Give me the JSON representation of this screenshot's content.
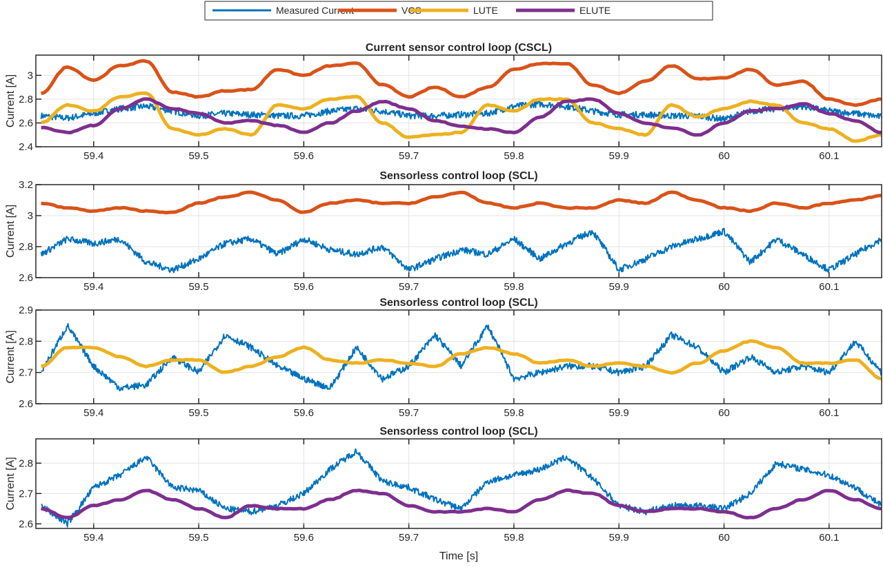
{
  "chart_data": {
    "type": "line",
    "legend": {
      "placement": "top-center",
      "entries": [
        {
          "name": "Measured Current",
          "color": "#0072BD"
        },
        {
          "name": "VCS",
          "color": "#D95319"
        },
        {
          "name": "LUTE",
          "color": "#EDB120"
        },
        {
          "name": "ELUTE",
          "color": "#7E2F8E"
        }
      ]
    },
    "xlabel": "Time [s]",
    "x": [
      59.35,
      59.375,
      59.4,
      59.425,
      59.45,
      59.475,
      59.5,
      59.525,
      59.55,
      59.575,
      59.6,
      59.625,
      59.65,
      59.675,
      59.7,
      59.725,
      59.75,
      59.775,
      59.8,
      59.825,
      59.85,
      59.875,
      59.9,
      59.925,
      59.95,
      59.975,
      60,
      60.025,
      60.05,
      60.075,
      60.1,
      60.125,
      60.15
    ],
    "xlim": [
      59.345,
      60.15
    ],
    "xticks": [
      59.4,
      59.5,
      59.6,
      59.7,
      59.8,
      59.9,
      60,
      60.1
    ],
    "xtick_labels": [
      "59.4",
      "59.5",
      "59.6",
      "59.7",
      "59.8",
      "59.9",
      "60",
      "60.1"
    ],
    "grid": true,
    "subplots": [
      {
        "title": "Current sensor control loop (CSCL)",
        "ylabel": "Current [A]",
        "ylim": [
          2.4,
          3.17
        ],
        "yticks": [
          2.4,
          2.6,
          2.8,
          3
        ],
        "ytick_labels": [
          "2.4",
          "2.6",
          "2.8",
          "3"
        ],
        "series": [
          {
            "name": "Measured Current",
            "color": "#0072BD",
            "values": [
              2.66,
              2.64,
              2.68,
              2.72,
              2.74,
              2.7,
              2.66,
              2.68,
              2.67,
              2.66,
              2.66,
              2.7,
              2.72,
              2.7,
              2.66,
              2.66,
              2.67,
              2.68,
              2.74,
              2.76,
              2.74,
              2.7,
              2.67,
              2.67,
              2.66,
              2.66,
              2.63,
              2.7,
              2.72,
              2.74,
              2.7,
              2.68,
              2.65
            ]
          },
          {
            "name": "VCS",
            "color": "#D95319",
            "values": [
              2.85,
              3.07,
              2.96,
              3.08,
              3.12,
              2.86,
              2.82,
              2.87,
              2.88,
              3.05,
              3.0,
              3.08,
              3.1,
              2.92,
              2.82,
              2.9,
              2.82,
              2.9,
              3.05,
              3.1,
              3.1,
              2.92,
              2.85,
              2.95,
              3.08,
              2.97,
              2.98,
              3.05,
              2.92,
              2.95,
              2.8,
              2.75,
              2.8
            ]
          },
          {
            "name": "LUTE",
            "color": "#EDB120",
            "values": [
              2.6,
              2.75,
              2.7,
              2.82,
              2.85,
              2.55,
              2.5,
              2.55,
              2.5,
              2.75,
              2.72,
              2.8,
              2.82,
              2.6,
              2.48,
              2.5,
              2.52,
              2.75,
              2.7,
              2.8,
              2.8,
              2.6,
              2.55,
              2.5,
              2.75,
              2.65,
              2.72,
              2.78,
              2.75,
              2.6,
              2.55,
              2.45,
              2.5
            ]
          },
          {
            "name": "ELUTE",
            "color": "#7E2F8E",
            "values": [
              2.56,
              2.52,
              2.58,
              2.72,
              2.8,
              2.72,
              2.68,
              2.6,
              2.62,
              2.58,
              2.52,
              2.6,
              2.7,
              2.78,
              2.72,
              2.62,
              2.57,
              2.55,
              2.52,
              2.65,
              2.78,
              2.8,
              2.68,
              2.6,
              2.56,
              2.5,
              2.6,
              2.7,
              2.72,
              2.76,
              2.68,
              2.62,
              2.52
            ]
          }
        ]
      },
      {
        "title": "Sensorless control loop (SCL)",
        "ylabel": "Current [A]",
        "ylim": [
          2.6,
          3.2
        ],
        "yticks": [
          2.6,
          2.8,
          3,
          3.2
        ],
        "ytick_labels": [
          "2.6",
          "2.8",
          "3",
          "3.2"
        ],
        "series": [
          {
            "name": "Measured Current",
            "color": "#0072BD",
            "values": [
              2.75,
              2.85,
              2.82,
              2.85,
              2.7,
              2.65,
              2.72,
              2.82,
              2.85,
              2.75,
              2.85,
              2.78,
              2.75,
              2.8,
              2.65,
              2.72,
              2.78,
              2.75,
              2.85,
              2.72,
              2.82,
              2.9,
              2.65,
              2.72,
              2.8,
              2.85,
              2.9,
              2.7,
              2.85,
              2.75,
              2.65,
              2.75,
              2.85
            ]
          },
          {
            "name": "VCS",
            "color": "#D95319",
            "values": [
              3.08,
              3.05,
              3.03,
              3.05,
              3.03,
              3.02,
              3.08,
              3.12,
              3.15,
              3.1,
              3.02,
              3.08,
              3.1,
              3.08,
              3.08,
              3.12,
              3.15,
              3.08,
              3.05,
              3.08,
              3.05,
              3.05,
              3.1,
              3.08,
              3.15,
              3.1,
              3.05,
              3.03,
              3.08,
              3.05,
              3.08,
              3.1,
              3.13
            ]
          }
        ]
      },
      {
        "title": "Sensorless control loop (SCL)",
        "ylabel": "Current [A]",
        "ylim": [
          2.6,
          2.9
        ],
        "yticks": [
          2.6,
          2.7,
          2.8,
          2.9
        ],
        "ytick_labels": [
          "2.6",
          "2.7",
          "2.8",
          "2.9"
        ],
        "series": [
          {
            "name": "Measured Current",
            "color": "#0072BD",
            "values": [
              2.7,
              2.85,
              2.72,
              2.65,
              2.66,
              2.75,
              2.7,
              2.82,
              2.78,
              2.72,
              2.68,
              2.65,
              2.78,
              2.68,
              2.72,
              2.82,
              2.72,
              2.85,
              2.68,
              2.7,
              2.72,
              2.72,
              2.7,
              2.72,
              2.82,
              2.78,
              2.7,
              2.75,
              2.7,
              2.72,
              2.7,
              2.8,
              2.7
            ]
          },
          {
            "name": "LUTE",
            "color": "#EDB120",
            "values": [
              2.72,
              2.78,
              2.78,
              2.75,
              2.72,
              2.74,
              2.74,
              2.7,
              2.72,
              2.75,
              2.78,
              2.74,
              2.73,
              2.74,
              2.73,
              2.72,
              2.76,
              2.78,
              2.76,
              2.73,
              2.74,
              2.72,
              2.73,
              2.72,
              2.7,
              2.73,
              2.77,
              2.8,
              2.78,
              2.73,
              2.73,
              2.74,
              2.68
            ]
          }
        ]
      },
      {
        "title": "Sensorless control loop (SCL)",
        "ylabel": "Current [A]",
        "ylim": [
          2.585,
          2.88
        ],
        "yticks": [
          2.6,
          2.7,
          2.8
        ],
        "ytick_labels": [
          "2.6",
          "2.7",
          "2.8"
        ],
        "series": [
          {
            "name": "Measured Current",
            "color": "#0072BD",
            "values": [
              2.66,
              2.6,
              2.72,
              2.76,
              2.82,
              2.72,
              2.71,
              2.65,
              2.64,
              2.66,
              2.7,
              2.78,
              2.84,
              2.74,
              2.72,
              2.68,
              2.65,
              2.74,
              2.76,
              2.78,
              2.82,
              2.75,
              2.66,
              2.64,
              2.66,
              2.66,
              2.65,
              2.7,
              2.8,
              2.78,
              2.76,
              2.72,
              2.66
            ]
          },
          {
            "name": "ELUTE",
            "color": "#7E2F8E",
            "values": [
              2.65,
              2.62,
              2.66,
              2.68,
              2.71,
              2.68,
              2.65,
              2.62,
              2.66,
              2.65,
              2.65,
              2.68,
              2.71,
              2.7,
              2.66,
              2.64,
              2.64,
              2.65,
              2.64,
              2.68,
              2.71,
              2.7,
              2.66,
              2.64,
              2.65,
              2.65,
              2.64,
              2.62,
              2.65,
              2.68,
              2.71,
              2.68,
              2.65
            ]
          }
        ]
      }
    ]
  }
}
